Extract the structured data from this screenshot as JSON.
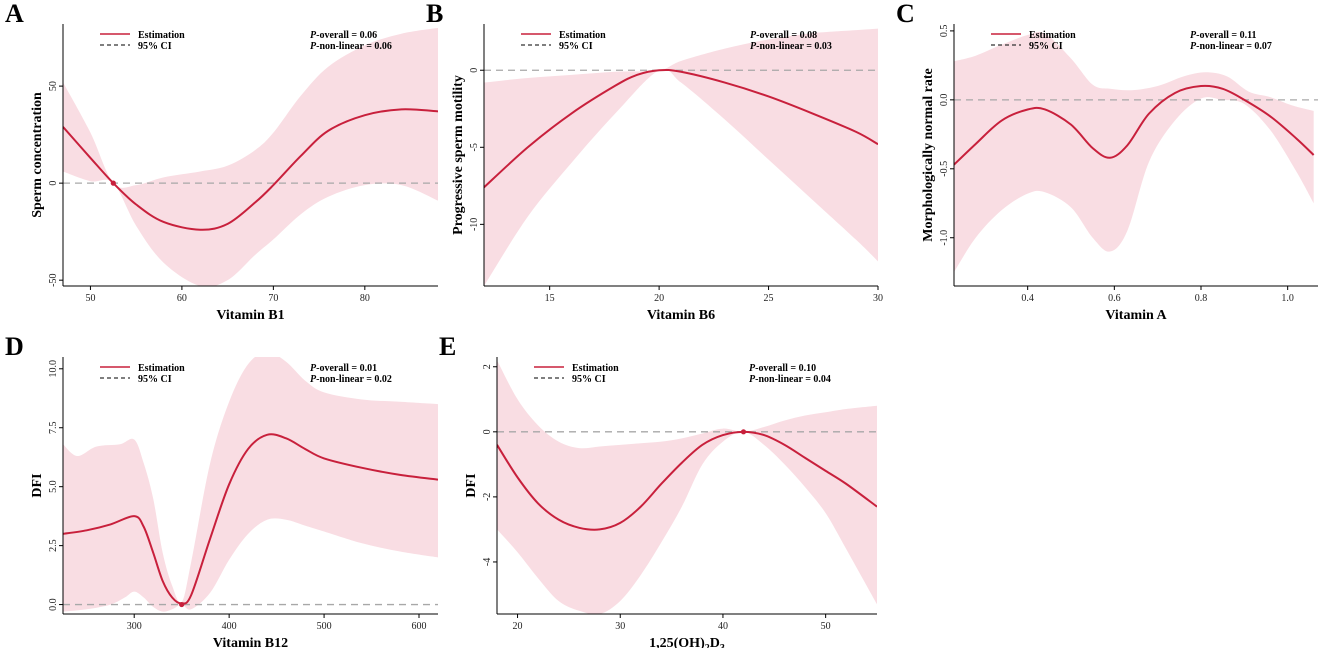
{
  "figure": {
    "colors": {
      "estimate": "#c8203c",
      "ci_fill": "#f9dde3",
      "reference": "#a8a8a8",
      "axis": "#000000"
    },
    "legend": {
      "estimation_label": "Estimation",
      "ci_label": "95% CI"
    }
  },
  "chart_data": [
    {
      "type": "line",
      "panel": "A",
      "xlabel": "Vitamin B1",
      "ylabel": "Sperm concentration",
      "xlim": [
        47,
        88
      ],
      "ylim": [
        -53,
        82
      ],
      "xticks": [
        50,
        60,
        70,
        80
      ],
      "yticks": [
        -50,
        0,
        50
      ],
      "p_overall": {
        "label": "P",
        "text": "-overall = 0.06"
      },
      "p_nonlinear": {
        "label": "P",
        "text": "-non-linear = 0.06"
      },
      "reference_line": 0,
      "knot": [
        52.5,
        0
      ],
      "estimate": [
        [
          47,
          29
        ],
        [
          50,
          13
        ],
        [
          52.5,
          0
        ],
        [
          55,
          -11
        ],
        [
          58,
          -20
        ],
        [
          62,
          -24
        ],
        [
          65,
          -21
        ],
        [
          68,
          -10
        ],
        [
          70,
          -1
        ],
        [
          73,
          14
        ],
        [
          76,
          27
        ],
        [
          80,
          35
        ],
        [
          84,
          38
        ],
        [
          88,
          37
        ]
      ],
      "ci_upper": [
        [
          47,
          52
        ],
        [
          50,
          26
        ],
        [
          52.5,
          0
        ],
        [
          55,
          -1
        ],
        [
          58,
          3
        ],
        [
          62,
          6
        ],
        [
          65,
          9
        ],
        [
          68,
          17
        ],
        [
          70,
          26
        ],
        [
          73,
          45
        ],
        [
          76,
          60
        ],
        [
          80,
          71
        ],
        [
          84,
          77
        ],
        [
          88,
          80
        ]
      ],
      "ci_lower": [
        [
          47,
          6
        ],
        [
          50,
          1
        ],
        [
          52.5,
          0
        ],
        [
          55,
          -22
        ],
        [
          58,
          -41
        ],
        [
          62,
          -53
        ],
        [
          65,
          -50
        ],
        [
          68,
          -37
        ],
        [
          70,
          -29
        ],
        [
          73,
          -16
        ],
        [
          76,
          -7
        ],
        [
          80,
          -1
        ],
        [
          84,
          -1
        ],
        [
          88,
          -9
        ]
      ]
    },
    {
      "type": "line",
      "panel": "B",
      "xlabel": "Vitamin B6",
      "ylabel": "Progressive sperm motility",
      "xlim": [
        12,
        30
      ],
      "ylim": [
        -14,
        3
      ],
      "xticks": [
        15,
        20,
        25,
        30
      ],
      "yticks": [
        -10,
        -5,
        0
      ],
      "p_overall": {
        "label": "P",
        "text": "-overall = 0.08"
      },
      "p_nonlinear": {
        "label": "P",
        "text": "-non-linear = 0.03"
      },
      "reference_line": 0,
      "knot": null,
      "estimate": [
        [
          12,
          -7.6
        ],
        [
          14,
          -5.0
        ],
        [
          16,
          -2.8
        ],
        [
          18,
          -1.0
        ],
        [
          19,
          -0.3
        ],
        [
          20,
          0
        ],
        [
          21,
          -0.1
        ],
        [
          23,
          -0.8
        ],
        [
          25,
          -1.7
        ],
        [
          27,
          -2.8
        ],
        [
          29,
          -4.0
        ],
        [
          30,
          -4.8
        ]
      ],
      "ci_upper": [
        [
          12,
          -0.8
        ],
        [
          14,
          -0.5
        ],
        [
          16,
          -0.3
        ],
        [
          18,
          -0.1
        ],
        [
          20,
          0
        ],
        [
          21,
          0.6
        ],
        [
          23,
          1.4
        ],
        [
          25,
          2.0
        ],
        [
          27,
          2.4
        ],
        [
          29,
          2.6
        ],
        [
          30,
          2.7
        ]
      ],
      "ci_lower": [
        [
          12,
          -14
        ],
        [
          14,
          -9.5
        ],
        [
          16,
          -6
        ],
        [
          18,
          -2.8
        ],
        [
          20,
          0
        ],
        [
          21,
          -0.8
        ],
        [
          23,
          -3.2
        ],
        [
          25,
          -5.8
        ],
        [
          27,
          -8.4
        ],
        [
          29,
          -11.0
        ],
        [
          30,
          -12.4
        ]
      ]
    },
    {
      "type": "line",
      "panel": "C",
      "xlabel": "Vitamin A",
      "ylabel": "Morphologically normal rate",
      "xlim": [
        0.23,
        1.07
      ],
      "ylim": [
        -1.35,
        0.55
      ],
      "xticks": [
        0.4,
        0.6,
        0.8,
        1.0
      ],
      "yticks": [
        -1.0,
        -0.5,
        0.0,
        0.5
      ],
      "p_overall": {
        "label": "P",
        "text": "-overall = 0.11"
      },
      "p_nonlinear": {
        "label": "P",
        "text": "-non-linear = 0.07"
      },
      "reference_line": 0,
      "knot": null,
      "estimate": [
        [
          0.23,
          -0.47
        ],
        [
          0.28,
          -0.32
        ],
        [
          0.34,
          -0.15
        ],
        [
          0.4,
          -0.07
        ],
        [
          0.44,
          -0.07
        ],
        [
          0.5,
          -0.18
        ],
        [
          0.55,
          -0.35
        ],
        [
          0.59,
          -0.42
        ],
        [
          0.63,
          -0.33
        ],
        [
          0.68,
          -0.1
        ],
        [
          0.74,
          0.05
        ],
        [
          0.8,
          0.1
        ],
        [
          0.85,
          0.08
        ],
        [
          0.9,
          0.0
        ],
        [
          0.96,
          -0.12
        ],
        [
          1.02,
          -0.28
        ],
        [
          1.06,
          -0.4
        ]
      ],
      "ci_upper": [
        [
          0.23,
          0.28
        ],
        [
          0.28,
          0.32
        ],
        [
          0.34,
          0.4
        ],
        [
          0.4,
          0.47
        ],
        [
          0.44,
          0.48
        ],
        [
          0.5,
          0.3
        ],
        [
          0.55,
          0.11
        ],
        [
          0.59,
          0.08
        ],
        [
          0.64,
          0.07
        ],
        [
          0.7,
          0.1
        ],
        [
          0.76,
          0.17
        ],
        [
          0.81,
          0.2
        ],
        [
          0.86,
          0.17
        ],
        [
          0.91,
          0.06
        ],
        [
          0.96,
          0.02
        ],
        [
          1.01,
          -0.04
        ],
        [
          1.06,
          -0.08
        ]
      ],
      "ci_lower": [
        [
          0.23,
          -1.25
        ],
        [
          0.28,
          -1.0
        ],
        [
          0.34,
          -0.8
        ],
        [
          0.4,
          -0.68
        ],
        [
          0.44,
          -0.67
        ],
        [
          0.5,
          -0.78
        ],
        [
          0.55,
          -1.0
        ],
        [
          0.59,
          -1.1
        ],
        [
          0.63,
          -0.95
        ],
        [
          0.68,
          -0.45
        ],
        [
          0.74,
          -0.15
        ],
        [
          0.8,
          0.01
        ],
        [
          0.85,
          0.0
        ],
        [
          0.9,
          -0.03
        ],
        [
          0.96,
          -0.22
        ],
        [
          1.02,
          -0.52
        ],
        [
          1.06,
          -0.75
        ]
      ]
    },
    {
      "type": "line",
      "panel": "D",
      "xlabel": "Vitamin B12",
      "ylabel": "DFI",
      "xlim": [
        225,
        620
      ],
      "ylim": [
        -0.4,
        10.5
      ],
      "xticks": [
        300,
        400,
        500,
        600
      ],
      "yticks": [
        0.0,
        2.5,
        5.0,
        7.5,
        10.0
      ],
      "p_overall": {
        "label": "P",
        "text": "-overall = 0.01"
      },
      "p_nonlinear": {
        "label": "P",
        "text": "-non-linear = 0.02"
      },
      "reference_line": 0,
      "knot": [
        350,
        0
      ],
      "estimate": [
        [
          225,
          3.0
        ],
        [
          250,
          3.15
        ],
        [
          275,
          3.4
        ],
        [
          300,
          3.75
        ],
        [
          310,
          3.3
        ],
        [
          320,
          2.2
        ],
        [
          330,
          1.0
        ],
        [
          340,
          0.3
        ],
        [
          350,
          0.05
        ],
        [
          360,
          0.4
        ],
        [
          380,
          2.8
        ],
        [
          400,
          5.1
        ],
        [
          420,
          6.6
        ],
        [
          440,
          7.2
        ],
        [
          460,
          7.05
        ],
        [
          480,
          6.6
        ],
        [
          500,
          6.2
        ],
        [
          540,
          5.8
        ],
        [
          580,
          5.5
        ],
        [
          620,
          5.3
        ]
      ],
      "ci_upper": [
        [
          225,
          6.8
        ],
        [
          240,
          6.3
        ],
        [
          260,
          6.7
        ],
        [
          285,
          6.8
        ],
        [
          300,
          7.0
        ],
        [
          310,
          6.0
        ],
        [
          320,
          4.5
        ],
        [
          330,
          2.2
        ],
        [
          340,
          0.8
        ],
        [
          350,
          0.1
        ],
        [
          360,
          1.8
        ],
        [
          380,
          6.0
        ],
        [
          400,
          8.6
        ],
        [
          420,
          10.2
        ],
        [
          440,
          10.7
        ],
        [
          460,
          10.3
        ],
        [
          480,
          9.5
        ],
        [
          500,
          9.0
        ],
        [
          540,
          8.7
        ],
        [
          580,
          8.6
        ],
        [
          620,
          8.5
        ]
      ],
      "ci_lower": [
        [
          225,
          -0.3
        ],
        [
          250,
          -0.2
        ],
        [
          275,
          0.0
        ],
        [
          290,
          0.3
        ],
        [
          300,
          0.55
        ],
        [
          310,
          0.3
        ],
        [
          320,
          -0.1
        ],
        [
          330,
          -0.3
        ],
        [
          340,
          -0.2
        ],
        [
          350,
          0.0
        ],
        [
          360,
          -0.2
        ],
        [
          380,
          0.5
        ],
        [
          400,
          1.9
        ],
        [
          420,
          3.0
        ],
        [
          440,
          3.6
        ],
        [
          460,
          3.6
        ],
        [
          480,
          3.35
        ],
        [
          500,
          3.1
        ],
        [
          540,
          2.6
        ],
        [
          580,
          2.25
        ],
        [
          620,
          2.0
        ]
      ]
    },
    {
      "type": "line",
      "panel": "E",
      "xlabel": "1,25(OH)2D3",
      "ylabel": "DFI",
      "xlim": [
        18,
        55
      ],
      "ylim": [
        -5.6,
        2.3
      ],
      "xticks": [
        20,
        30,
        40,
        50
      ],
      "yticks": [
        -4,
        -2,
        0,
        2
      ],
      "p_overall": {
        "label": "P",
        "text": "-overall = 0.10"
      },
      "p_nonlinear": {
        "label": "P",
        "text": "-non-linear = 0.04"
      },
      "reference_line": 0,
      "knot": [
        42,
        0
      ],
      "estimate": [
        [
          18,
          -0.4
        ],
        [
          20,
          -1.4
        ],
        [
          22,
          -2.2
        ],
        [
          24,
          -2.7
        ],
        [
          26,
          -2.95
        ],
        [
          28,
          -3.0
        ],
        [
          30,
          -2.8
        ],
        [
          32,
          -2.3
        ],
        [
          34,
          -1.6
        ],
        [
          36,
          -0.95
        ],
        [
          38,
          -0.4
        ],
        [
          40,
          -0.1
        ],
        [
          42,
          0.0
        ],
        [
          44,
          -0.1
        ],
        [
          46,
          -0.4
        ],
        [
          48,
          -0.8
        ],
        [
          50,
          -1.2
        ],
        [
          52,
          -1.6
        ],
        [
          55,
          -2.3
        ]
      ],
      "ci_upper": [
        [
          18,
          2.2
        ],
        [
          20,
          1.0
        ],
        [
          22,
          0.2
        ],
        [
          24,
          -0.3
        ],
        [
          26,
          -0.5
        ],
        [
          28,
          -0.45
        ],
        [
          30,
          -0.4
        ],
        [
          32,
          -0.35
        ],
        [
          34,
          -0.3
        ],
        [
          36,
          -0.2
        ],
        [
          38,
          -0.05
        ],
        [
          40,
          0.1
        ],
        [
          42,
          0.0
        ],
        [
          44,
          0.15
        ],
        [
          46,
          0.35
        ],
        [
          48,
          0.5
        ],
        [
          50,
          0.6
        ],
        [
          52,
          0.7
        ],
        [
          55,
          0.8
        ]
      ],
      "ci_lower": [
        [
          18,
          -3.0
        ],
        [
          20,
          -3.7
        ],
        [
          22,
          -4.5
        ],
        [
          24,
          -5.2
        ],
        [
          26,
          -5.5
        ],
        [
          28,
          -5.6
        ],
        [
          30,
          -5.2
        ],
        [
          32,
          -4.4
        ],
        [
          34,
          -3.4
        ],
        [
          36,
          -2.3
        ],
        [
          38,
          -1.0
        ],
        [
          40,
          -0.3
        ],
        [
          42,
          0.0
        ],
        [
          44,
          -0.4
        ],
        [
          46,
          -1.0
        ],
        [
          48,
          -1.7
        ],
        [
          50,
          -2.5
        ],
        [
          52,
          -3.6
        ],
        [
          55,
          -5.3
        ]
      ]
    }
  ]
}
